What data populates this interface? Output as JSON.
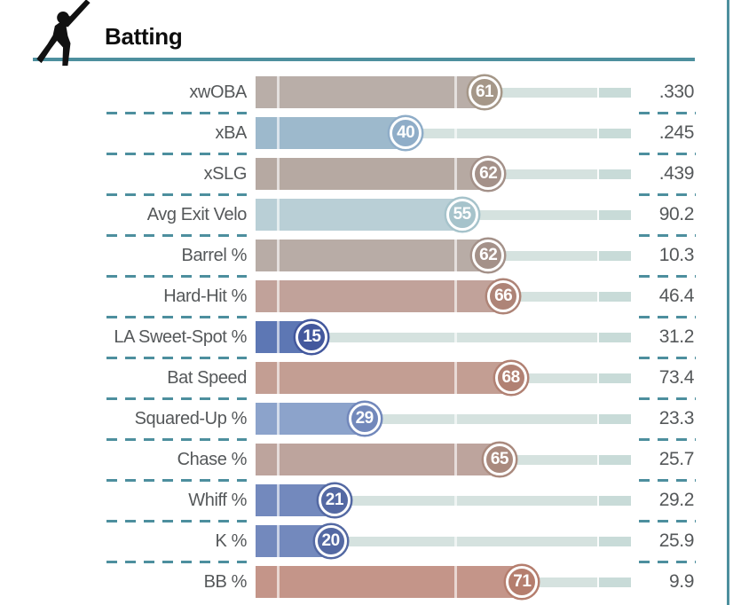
{
  "header": {
    "title": "Batting",
    "icon": "batter-icon"
  },
  "colors": {
    "accent_teal": "#4d8f9e",
    "text_gray": "#55585a",
    "track": "#d5e2df",
    "track_end": "#c8dbd8",
    "badge_text": "#ffffff"
  },
  "stats": [
    {
      "label": "xwOBA",
      "percentile": 61,
      "value": ".330",
      "fill_color": "#b9aea8",
      "badge_color": "#a59788"
    },
    {
      "label": "xBA",
      "percentile": 40,
      "value": ".245",
      "fill_color": "#9db9cc",
      "badge_color": "#8fadc8"
    },
    {
      "label": "xSLG",
      "percentile": 62,
      "value": ".439",
      "fill_color": "#b6a9a2",
      "badge_color": "#a49189"
    },
    {
      "label": "Avg Exit Velo",
      "percentile": 55,
      "value": "90.2",
      "fill_color": "#b9cfd6",
      "badge_color": "#a6c3cb"
    },
    {
      "label": "Barrel %",
      "percentile": 62,
      "value": "10.3",
      "fill_color": "#b8aca6",
      "badge_color": "#a49189"
    },
    {
      "label": "Hard-Hit %",
      "percentile": 66,
      "value": "46.4",
      "fill_color": "#c1a29a",
      "badge_color": "#ae8477"
    },
    {
      "label": "LA Sweet-Spot %",
      "percentile": 15,
      "value": "31.2",
      "fill_color": "#5d77b4",
      "badge_color": "#43589d"
    },
    {
      "label": "Bat Speed",
      "percentile": 68,
      "value": "73.4",
      "fill_color": "#c39e93",
      "badge_color": "#b18173"
    },
    {
      "label": "Squared-Up %",
      "percentile": 29,
      "value": "23.3",
      "fill_color": "#8ca3cb",
      "badge_color": "#7288bb"
    },
    {
      "label": "Chase %",
      "percentile": 65,
      "value": "25.7",
      "fill_color": "#bda49d",
      "badge_color": "#aa8a7e"
    },
    {
      "label": "Whiff %",
      "percentile": 21,
      "value": "29.2",
      "fill_color": "#7389bd",
      "badge_color": "#5469a3"
    },
    {
      "label": "K %",
      "percentile": 20,
      "value": "25.9",
      "fill_color": "#7389bd",
      "badge_color": "#5469a3"
    },
    {
      "label": "BB %",
      "percentile": 71,
      "value": "9.9",
      "fill_color": "#c49589",
      "badge_color": "#b57e6e"
    }
  ],
  "chart_data": {
    "type": "bar",
    "orientation": "horizontal",
    "title": "Batting",
    "categories": [
      "xwOBA",
      "xBA",
      "xSLG",
      "Avg Exit Velo",
      "Barrel %",
      "Hard-Hit %",
      "LA Sweet-Spot %",
      "Bat Speed",
      "Squared-Up %",
      "Chase %",
      "Whiff %",
      "K %",
      "BB %"
    ],
    "series": [
      {
        "name": "Percentile",
        "values": [
          61,
          40,
          62,
          55,
          62,
          66,
          15,
          68,
          29,
          65,
          21,
          20,
          71
        ]
      },
      {
        "name": "Stat Value",
        "values": [
          ".330",
          ".245",
          ".439",
          "90.2",
          "10.3",
          "46.4",
          "31.2",
          "73.4",
          "23.3",
          "25.7",
          "29.2",
          "25.9",
          "9.9"
        ]
      }
    ],
    "xlim": [
      0,
      100
    ],
    "grid": false,
    "legend": "none",
    "notes": "percentile bars with tick marks near 5th, 50th and 90th percentile positions; blue = low percentile, gray = average, red = high"
  }
}
